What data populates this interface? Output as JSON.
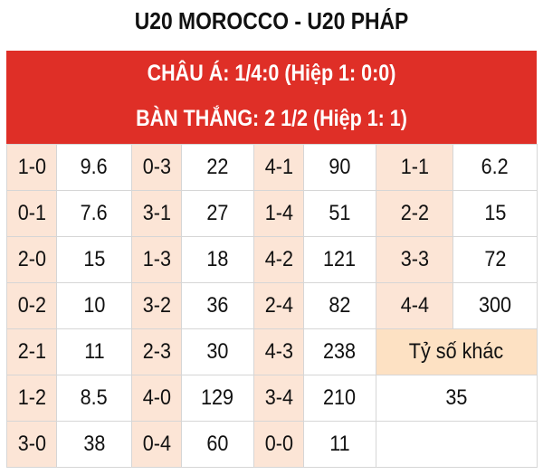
{
  "title": "U20 MOROCCO - U20 PHÁP",
  "header": {
    "line1": "CHÂU Á: 1/4:0 (Hiệp 1: 0:0)",
    "line2": "BÀN THẮNG: 2 1/2 (Hiệp 1: 1)"
  },
  "colors": {
    "header": "#df2f27",
    "score_cell": "#fce5d6",
    "other_cell": "#fde1c3"
  },
  "rows": [
    [
      [
        "1-0",
        "9.6"
      ],
      [
        "0-3",
        "22"
      ],
      [
        "4-1",
        "90"
      ],
      [
        "1-1",
        "6.2"
      ]
    ],
    [
      [
        "0-1",
        "7.6"
      ],
      [
        "3-1",
        "27"
      ],
      [
        "1-4",
        "51"
      ],
      [
        "2-2",
        "15"
      ]
    ],
    [
      [
        "2-0",
        "15"
      ],
      [
        "1-3",
        "18"
      ],
      [
        "4-2",
        "121"
      ],
      [
        "3-3",
        "72"
      ]
    ],
    [
      [
        "0-2",
        "10"
      ],
      [
        "3-2",
        "36"
      ],
      [
        "2-4",
        "82"
      ],
      [
        "4-4",
        "300"
      ]
    ],
    [
      [
        "2-1",
        "11"
      ],
      [
        "2-3",
        "30"
      ],
      [
        "4-3",
        "238"
      ]
    ],
    [
      [
        "1-2",
        "8.5"
      ],
      [
        "4-0",
        "129"
      ],
      [
        "3-4",
        "210"
      ]
    ],
    [
      [
        "3-0",
        "38"
      ],
      [
        "0-4",
        "60"
      ],
      [
        "0-0",
        "11"
      ]
    ]
  ],
  "other": {
    "label": "Tỷ số khác",
    "value": "35"
  }
}
